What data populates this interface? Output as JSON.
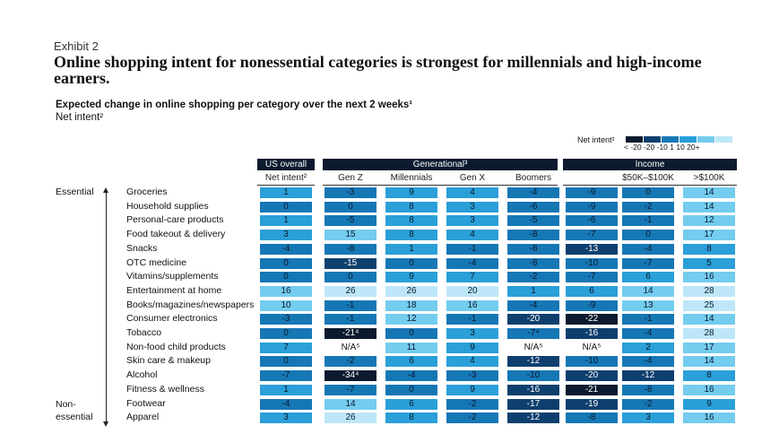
{
  "exhibit": "Exhibit 2",
  "title": "Online shopping intent for nonessential categories is strongest for millennials and high-income earners.",
  "subtitle": "Expected change in online shopping per category over the next 2 weeks¹",
  "subtitle2": "Net intent²",
  "legend": {
    "label": "Net intent²",
    "ticks": "< -20  -20  -10    1    10   20+",
    "colors": [
      "#0b1a2e",
      "#0e3f6e",
      "#1677b5",
      "#2a9fd8",
      "#74ccef",
      "#bde7f8"
    ]
  },
  "chart_data": {
    "type": "heatmap",
    "groups": [
      {
        "label": "US overall",
        "columns": [
          "Net intent²"
        ]
      },
      {
        "label": "Generational³",
        "columns": [
          "Gen Z",
          "Millennials",
          "Gen X",
          "Boomers"
        ]
      },
      {
        "label": "Income",
        "columns": [
          "",
          "$50K–$100K",
          ">$100K"
        ]
      }
    ],
    "side_labels": [
      {
        "text": "Essential",
        "rows": "Groceries–Apparel",
        "id": "essential"
      },
      {
        "text": "Non-essential",
        "id": "non-essential"
      }
    ],
    "rows": [
      {
        "label": "Groceries",
        "values": [
          "1",
          "-3",
          "9",
          "4",
          "-4",
          "-9",
          "0",
          "14"
        ]
      },
      {
        "label": "Household supplies",
        "values": [
          "0",
          "0",
          "8",
          "3",
          "-6",
          "-9",
          "-2",
          "14"
        ]
      },
      {
        "label": "Personal-care products",
        "values": [
          "1",
          "-5",
          "8",
          "3",
          "-5",
          "-6",
          "-1",
          "12"
        ]
      },
      {
        "label": "Food takeout & delivery",
        "values": [
          "3",
          "15",
          "8",
          "4",
          "-8",
          "-7",
          "0",
          "17"
        ]
      },
      {
        "label": "Snacks",
        "values": [
          "-4",
          "-8",
          "1",
          "-1",
          "-8",
          "-13",
          "-4",
          "8"
        ]
      },
      {
        "label": "OTC medicine",
        "values": [
          "0",
          "-15",
          "0",
          "-4",
          "-8",
          "-10",
          "-7",
          "5"
        ]
      },
      {
        "label": "Vitamins/supplements",
        "values": [
          "0",
          "0",
          "9",
          "7",
          "-2",
          "-7",
          "6",
          "16"
        ]
      },
      {
        "label": "Entertainment at home",
        "values": [
          "16",
          "26",
          "26",
          "20",
          "1",
          "6",
          "14",
          "28"
        ]
      },
      {
        "label": "Books/magazines/newspapers",
        "values": [
          "10",
          "-1",
          "18",
          "16",
          "-4",
          "-9",
          "13",
          "25"
        ]
      },
      {
        "label": "Consumer electronics",
        "values": [
          "-3",
          "-1",
          "12",
          "-1",
          "-20",
          "-22",
          "-1",
          "14"
        ]
      },
      {
        "label": "Tobacco",
        "values": [
          "0",
          "-21⁴",
          "0",
          "3",
          "-7⁴",
          "-16",
          "-4",
          "28"
        ]
      },
      {
        "label": "Non-food child products",
        "values": [
          "7",
          "N/A⁵",
          "11",
          "9",
          "N/A⁵",
          "N/A⁵",
          "2",
          "17"
        ]
      },
      {
        "label": "Skin care & makeup",
        "values": [
          "0",
          "-2",
          "6",
          "4",
          "-12",
          "-10",
          "-4",
          "14"
        ]
      },
      {
        "label": "Alcohol",
        "values": [
          "-7",
          "-34⁴",
          "-4",
          "-3",
          "-10",
          "-20",
          "-12",
          "8"
        ]
      },
      {
        "label": "Fitness & wellness",
        "values": [
          "1",
          "-7",
          "0",
          "9",
          "-16",
          "-21",
          "-8",
          "16"
        ]
      },
      {
        "label": "Footwear",
        "values": [
          "-4",
          "14",
          "6",
          "-2",
          "-17",
          "-19",
          "-2",
          "9"
        ]
      },
      {
        "label": "Apparel",
        "values": [
          "3",
          "26",
          "8",
          "-2",
          "-12",
          "-8",
          "3",
          "16"
        ]
      }
    ]
  }
}
